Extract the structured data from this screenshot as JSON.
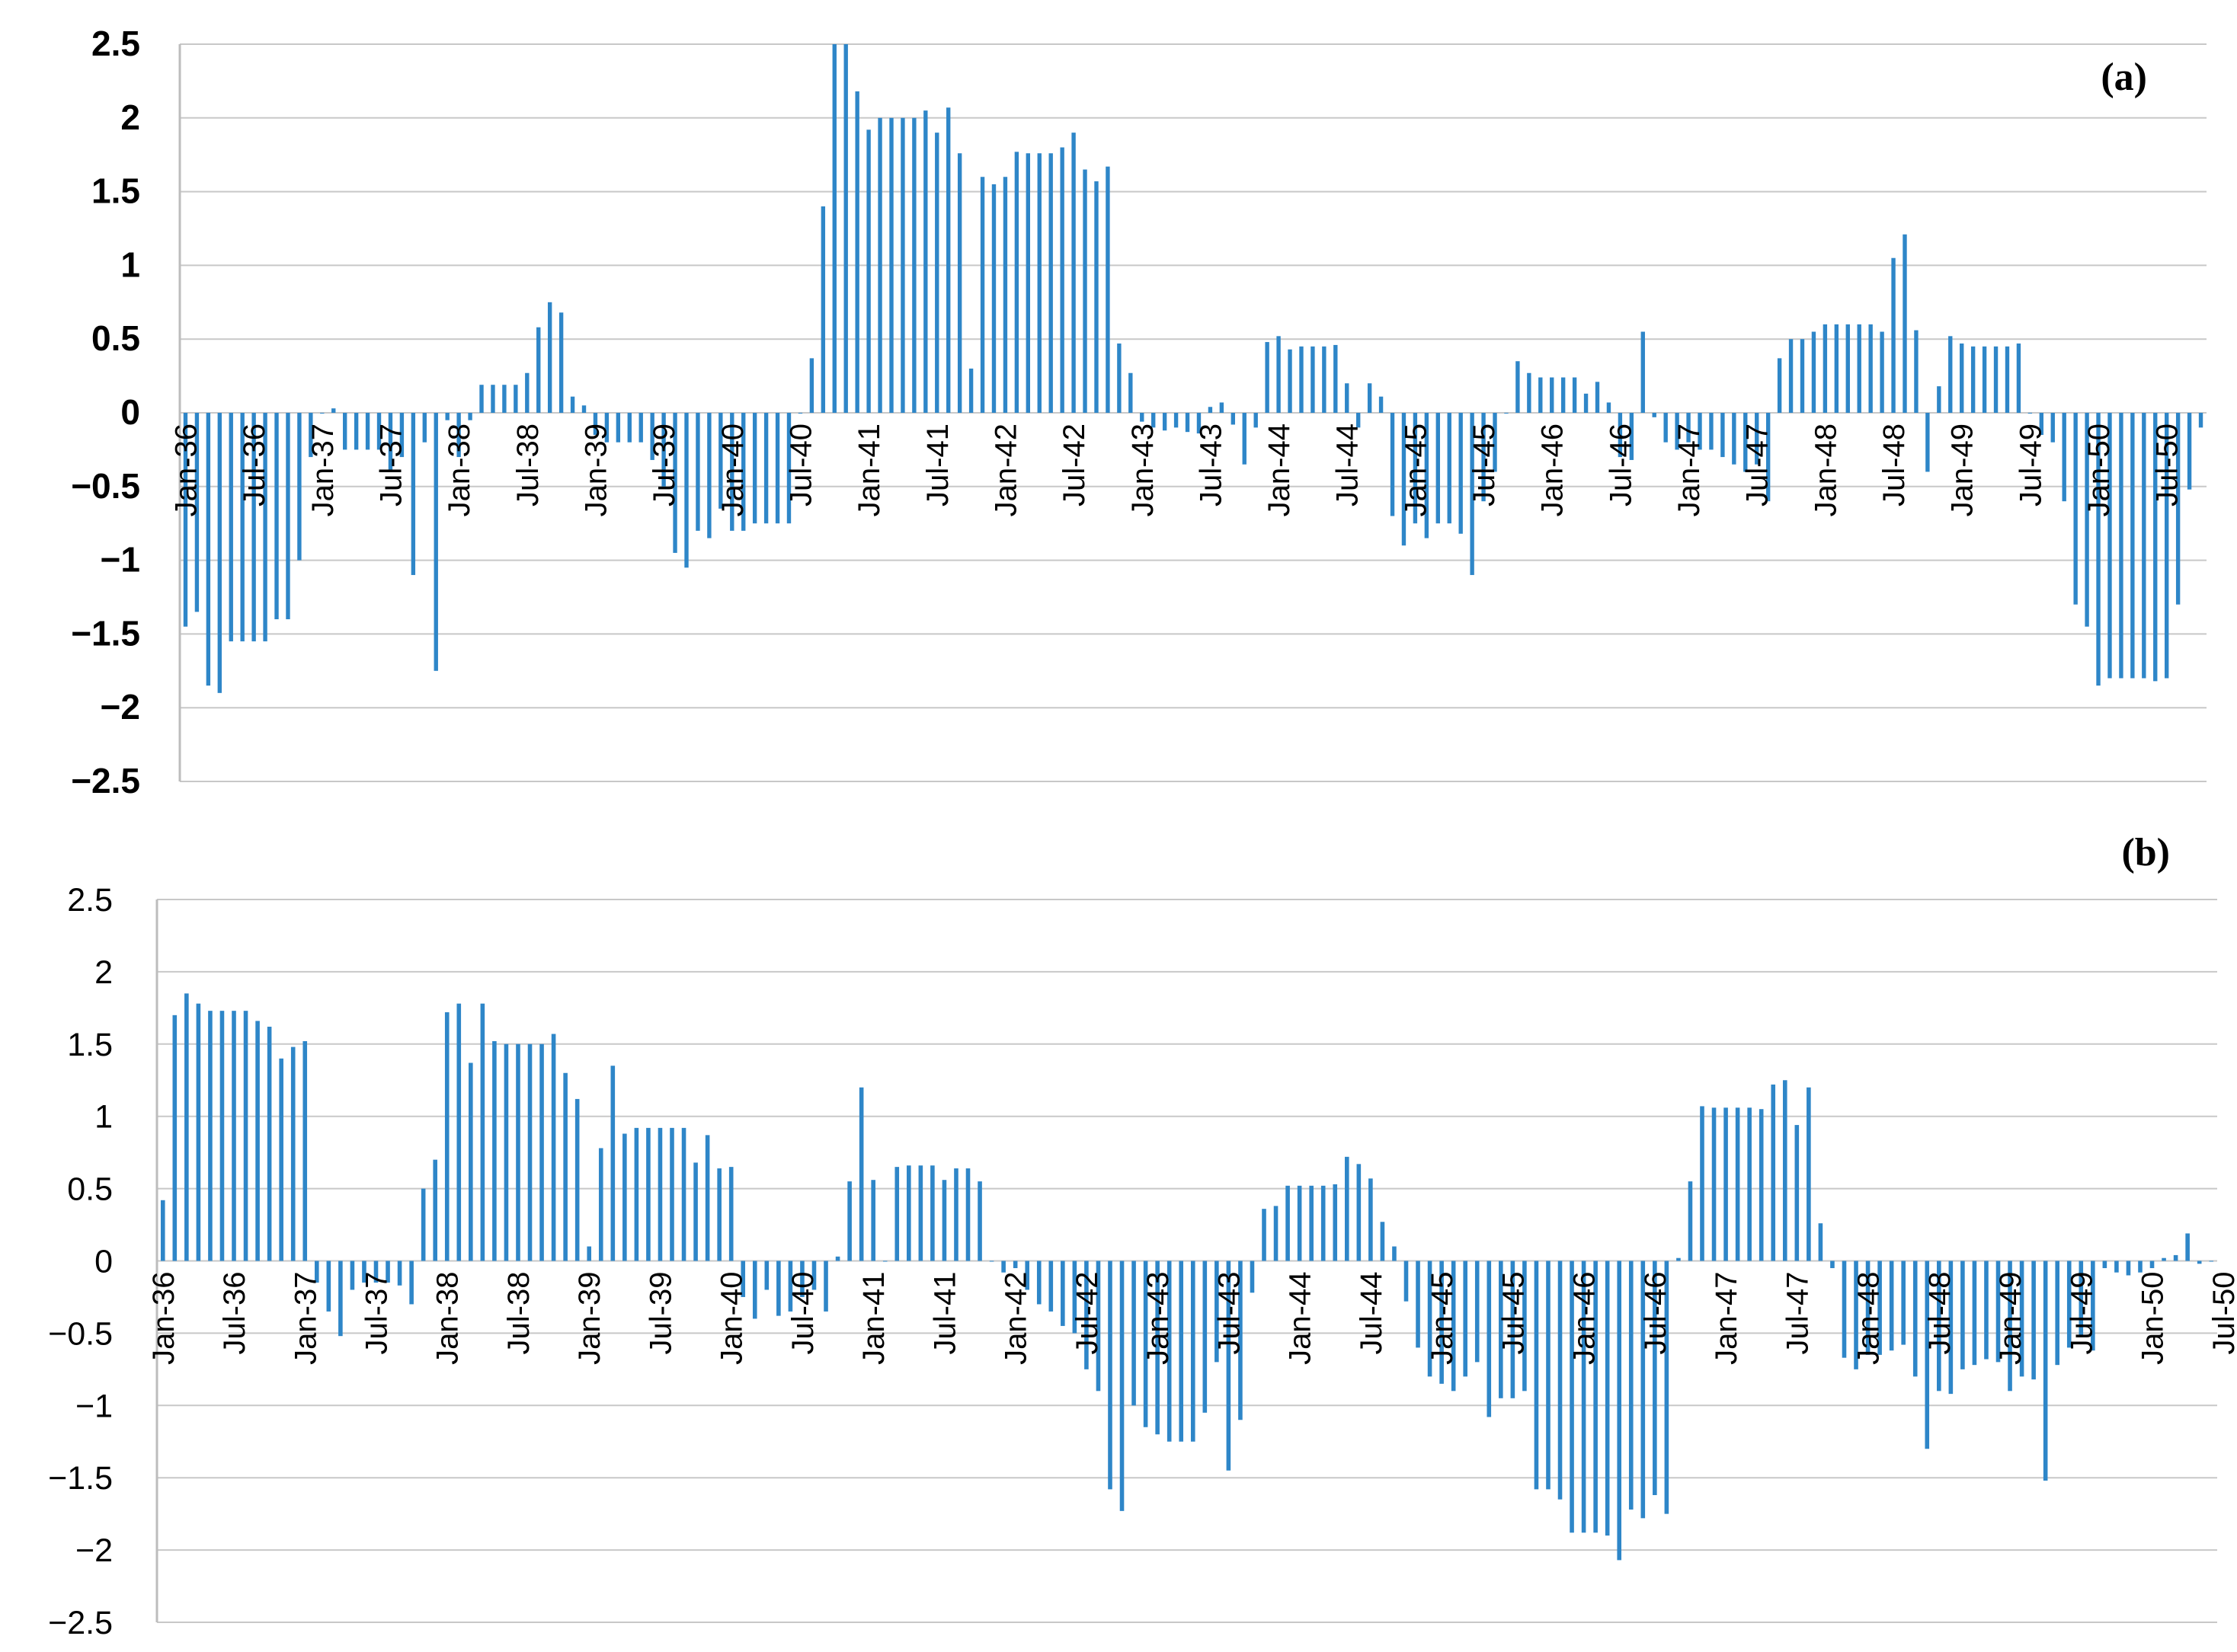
{
  "chart_data": [
    {
      "panel_label": "(a)",
      "type": "bar",
      "title": "",
      "xlabel": "",
      "ylabel": "",
      "ylim": [
        -2.5,
        2.5
      ],
      "yticks": [
        2.5,
        2,
        1.5,
        1,
        0.5,
        0,
        -0.5,
        -1,
        -1.5,
        -2,
        -2.5
      ],
      "ytick_labels": [
        "2.5",
        "2",
        "1.5",
        "1",
        "0.5",
        "0",
        "−0.5",
        "−1",
        "−1.5",
        "−2",
        "−2.5"
      ],
      "x_start": "Jan-36",
      "x_end": "Dec-50",
      "x_interval": "monthly",
      "xtick_labels": [
        "Jan-36",
        "Jul-36",
        "Jan-37",
        "Jul-37",
        "Jan-38",
        "Jul-38",
        "Jan-39",
        "Jul-39",
        "Jan-40",
        "Jul-40",
        "Jan-41",
        "Jul-41",
        "Jan-42",
        "Jul-42",
        "Jan-43",
        "Jul-43",
        "Jan-44",
        "Jul-44",
        "Jan-45",
        "Jul-45",
        "Jan-46",
        "Jul-46",
        "Jan-47",
        "Jul-47",
        "Jan-48",
        "Jul-48",
        "Jan-49",
        "Jul-49",
        "Jan-50",
        "Jul-50"
      ],
      "grid": true,
      "bar_color": "#2e86c8",
      "values": [
        -1.45,
        -1.35,
        -1.85,
        -1.9,
        -1.55,
        -1.55,
        -1.55,
        -1.55,
        -1.4,
        -1.4,
        -1.0,
        -0.3,
        0.0,
        0.03,
        -0.25,
        -0.25,
        -0.25,
        -0.25,
        -0.4,
        -0.3,
        -1.1,
        -0.2,
        -1.75,
        -0.05,
        -0.3,
        -0.05,
        0.19,
        0.19,
        0.19,
        0.19,
        0.27,
        0.58,
        0.75,
        0.68,
        0.11,
        0.05,
        -0.15,
        -0.2,
        -0.2,
        -0.2,
        -0.2,
        -0.32,
        -0.5,
        -0.95,
        -1.05,
        -0.8,
        -0.85,
        -0.65,
        -0.8,
        -0.8,
        -0.75,
        -0.75,
        -0.75,
        -0.75,
        0.0,
        0.37,
        1.4,
        2.5,
        2.5,
        2.18,
        1.92,
        2.0,
        2.0,
        2.0,
        2.0,
        2.05,
        1.9,
        2.07,
        1.76,
        0.3,
        1.6,
        1.55,
        1.6,
        1.77,
        1.76,
        1.76,
        1.76,
        1.8,
        1.9,
        1.65,
        1.57,
        1.67,
        0.47,
        0.27,
        -0.06,
        -0.1,
        -0.12,
        -0.1,
        -0.13,
        -0.14,
        0.04,
        0.07,
        -0.08,
        -0.35,
        -0.1,
        0.48,
        0.52,
        0.43,
        0.45,
        0.45,
        0.45,
        0.46,
        0.2,
        -0.1,
        0.2,
        0.11,
        -0.7,
        -0.9,
        -0.75,
        -0.85,
        -0.75,
        -0.75,
        -0.82,
        -1.1,
        -0.6,
        -0.4,
        0.0,
        0.35,
        0.27,
        0.24,
        0.24,
        0.24,
        0.24,
        0.13,
        0.21,
        0.07,
        -0.3,
        -0.32,
        0.55,
        -0.03,
        -0.2,
        -0.25,
        -0.2,
        -0.25,
        -0.25,
        -0.3,
        -0.35,
        -0.4,
        -0.35,
        -0.6,
        0.37,
        0.5,
        0.5,
        0.55,
        0.6,
        0.6,
        0.6,
        0.6,
        0.6,
        0.55,
        1.05,
        1.21,
        0.56,
        -0.4,
        0.18,
        0.52,
        0.47,
        0.45,
        0.45,
        0.45,
        0.45,
        0.47,
        0.0,
        -0.15,
        -0.2,
        -0.6,
        -1.3,
        -1.45,
        -1.85,
        -1.8,
        -1.8,
        -1.8,
        -1.8,
        -1.82,
        -1.8,
        -1.3,
        -0.52,
        -0.1
      ]
    },
    {
      "panel_label": "(b)",
      "type": "bar",
      "title": "",
      "xlabel": "",
      "ylabel": "",
      "ylim": [
        -2.5,
        2.5
      ],
      "yticks": [
        2.5,
        2,
        1.5,
        1,
        0.5,
        0,
        -0.5,
        -1,
        -1.5,
        -2,
        -2.5
      ],
      "ytick_labels": [
        "2.5",
        "2",
        "1.5",
        "1",
        "0.5",
        "0",
        "−0.5",
        "−1",
        "−1.5",
        "−2",
        "−2.5"
      ],
      "x_start": "Jan-36",
      "x_end": "Dec-50",
      "x_interval": "monthly",
      "xtick_labels": [
        "Jan-36",
        "Jul-36",
        "Jan-37",
        "Jul-37",
        "Jan-38",
        "Jul-38",
        "Jan-39",
        "Jul-39",
        "Jan-40",
        "Jul-40",
        "Jan-41",
        "Jul-41",
        "Jan-42",
        "Jul-42",
        "Jan-43",
        "Jul-43",
        "Jan-44",
        "Jul-44",
        "Jan-45",
        "Jul-45",
        "Jan-46",
        "Jul-46",
        "Jan-47",
        "Jul-47",
        "Jan-48",
        "Jul-48",
        "Jan-49",
        "Jul-49",
        "Jan-50",
        "Jul-50"
      ],
      "grid": true,
      "bar_color": "#2e86c8",
      "values": [
        0.42,
        1.7,
        1.85,
        1.78,
        1.73,
        1.73,
        1.73,
        1.73,
        1.66,
        1.62,
        1.4,
        1.48,
        1.52,
        -0.15,
        -0.35,
        -0.52,
        -0.2,
        -0.15,
        -0.15,
        -0.15,
        -0.17,
        -0.3,
        0.5,
        0.7,
        1.72,
        1.78,
        1.37,
        1.78,
        1.52,
        1.5,
        1.5,
        1.5,
        1.5,
        1.57,
        1.3,
        1.12,
        0.1,
        0.78,
        1.35,
        0.88,
        0.92,
        0.92,
        0.92,
        0.92,
        0.92,
        0.68,
        0.87,
        0.64,
        0.65,
        -0.25,
        -0.4,
        -0.2,
        -0.38,
        -0.35,
        -0.25,
        -0.2,
        -0.35,
        0.03,
        0.55,
        1.2,
        0.56,
        0.0,
        0.65,
        0.66,
        0.66,
        0.66,
        0.56,
        0.64,
        0.64,
        0.55,
        0.0,
        -0.08,
        -0.05,
        -0.2,
        -0.3,
        -0.35,
        -0.45,
        -0.5,
        -0.75,
        -0.9,
        -1.58,
        -1.73,
        -1.0,
        -1.15,
        -1.2,
        -1.25,
        -1.25,
        -1.25,
        -1.05,
        -0.7,
        -1.45,
        -1.1,
        -0.22,
        0.36,
        0.38,
        0.52,
        0.52,
        0.52,
        0.52,
        0.53,
        0.72,
        0.67,
        0.57,
        0.27,
        0.1,
        -0.28,
        -0.6,
        -0.8,
        -0.85,
        -0.9,
        -0.8,
        -0.7,
        -1.08,
        -0.95,
        -0.95,
        -0.9,
        -1.58,
        -1.58,
        -1.65,
        -1.88,
        -1.88,
        -1.88,
        -1.9,
        -2.07,
        -1.72,
        -1.78,
        -1.62,
        -1.75,
        0.02,
        0.55,
        1.07,
        1.06,
        1.06,
        1.06,
        1.06,
        1.05,
        1.22,
        1.25,
        0.94,
        1.2,
        0.26,
        -0.05,
        -0.67,
        -0.75,
        -0.65,
        -0.65,
        -0.62,
        -0.58,
        -0.8,
        -1.3,
        -0.9,
        -0.92,
        -0.75,
        -0.72,
        -0.68,
        -0.7,
        -0.9,
        -0.8,
        -0.82,
        -1.52,
        -0.72,
        -0.6,
        -0.52,
        -0.62,
        -0.05,
        -0.08,
        -0.1,
        -0.08,
        -0.05,
        0.02,
        0.04,
        0.19,
        -0.02,
        0.0
      ]
    }
  ]
}
